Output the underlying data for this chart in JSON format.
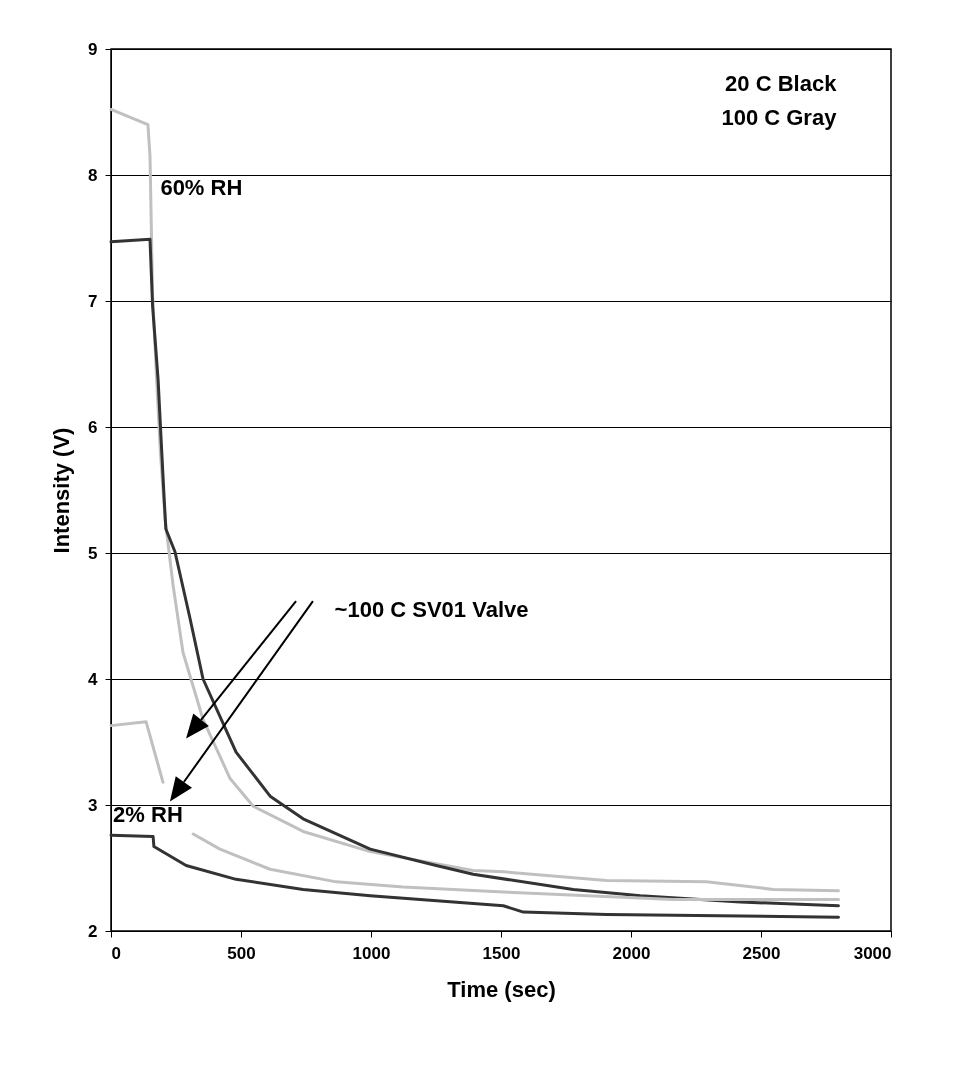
{
  "chart_data": {
    "type": "line",
    "xlabel": "Time (sec)",
    "ylabel": "Intensity (V)",
    "xlim": [
      0,
      3000
    ],
    "xticks": [
      0,
      500,
      1000,
      1500,
      2000,
      2500,
      3000
    ],
    "ylim": [
      2,
      9
    ],
    "yticks": [
      2,
      3,
      4,
      5,
      6,
      7,
      8,
      9
    ],
    "grid": "y",
    "marker": "none",
    "line_style": "solid",
    "annotations": [
      "20 C Black",
      "100 C Gray",
      "60% RH",
      "2% RH",
      "~100 C SV01 Valve"
    ],
    "series": [
      {
        "color": "#c0c0c0",
        "x": [
          0,
          142,
          150,
          160,
          175,
          190,
          208,
          239,
          277,
          354,
          458,
          547,
          739,
          997,
          1393,
          1509,
          1906,
          2290,
          2548,
          2798
        ],
        "values": [
          8.52,
          8.4,
          8.15,
          7.04,
          6.4,
          5.8,
          5.27,
          4.74,
          4.21,
          3.68,
          3.21,
          2.99,
          2.79,
          2.63,
          2.48,
          2.47,
          2.4,
          2.39,
          2.33,
          2.32
        ]
      },
      {
        "color": "#333333",
        "x": [
          0,
          150,
          160,
          181,
          196,
          204,
          211,
          246,
          304,
          354,
          481,
          612,
          739,
          997,
          1251,
          1393,
          1778,
          2036,
          2421,
          2798
        ],
        "values": [
          7.47,
          7.49,
          6.96,
          6.38,
          5.77,
          5.45,
          5.19,
          5.01,
          4.48,
          4.0,
          3.42,
          3.07,
          2.89,
          2.65,
          2.52,
          2.45,
          2.33,
          2.28,
          2.23,
          2.2
        ]
      },
      {
        "color": "#c0c0c0",
        "x": [
          0,
          135,
          200,
          250,
          316,
          419,
          612,
          866,
          1124,
          1509,
          2163,
          2798
        ],
        "values": [
          3.63,
          3.66,
          3.18,
          null,
          2.77,
          2.65,
          2.49,
          2.39,
          2.35,
          2.31,
          2.25,
          2.25
        ]
      },
      {
        "color": "#333333",
        "x": [
          0,
          162,
          165,
          289,
          481,
          739,
          997,
          1509,
          1586,
          1906,
          2798
        ],
        "values": [
          2.76,
          2.75,
          2.67,
          2.52,
          2.41,
          2.33,
          2.28,
          2.2,
          2.15,
          2.13,
          2.11
        ]
      }
    ]
  }
}
